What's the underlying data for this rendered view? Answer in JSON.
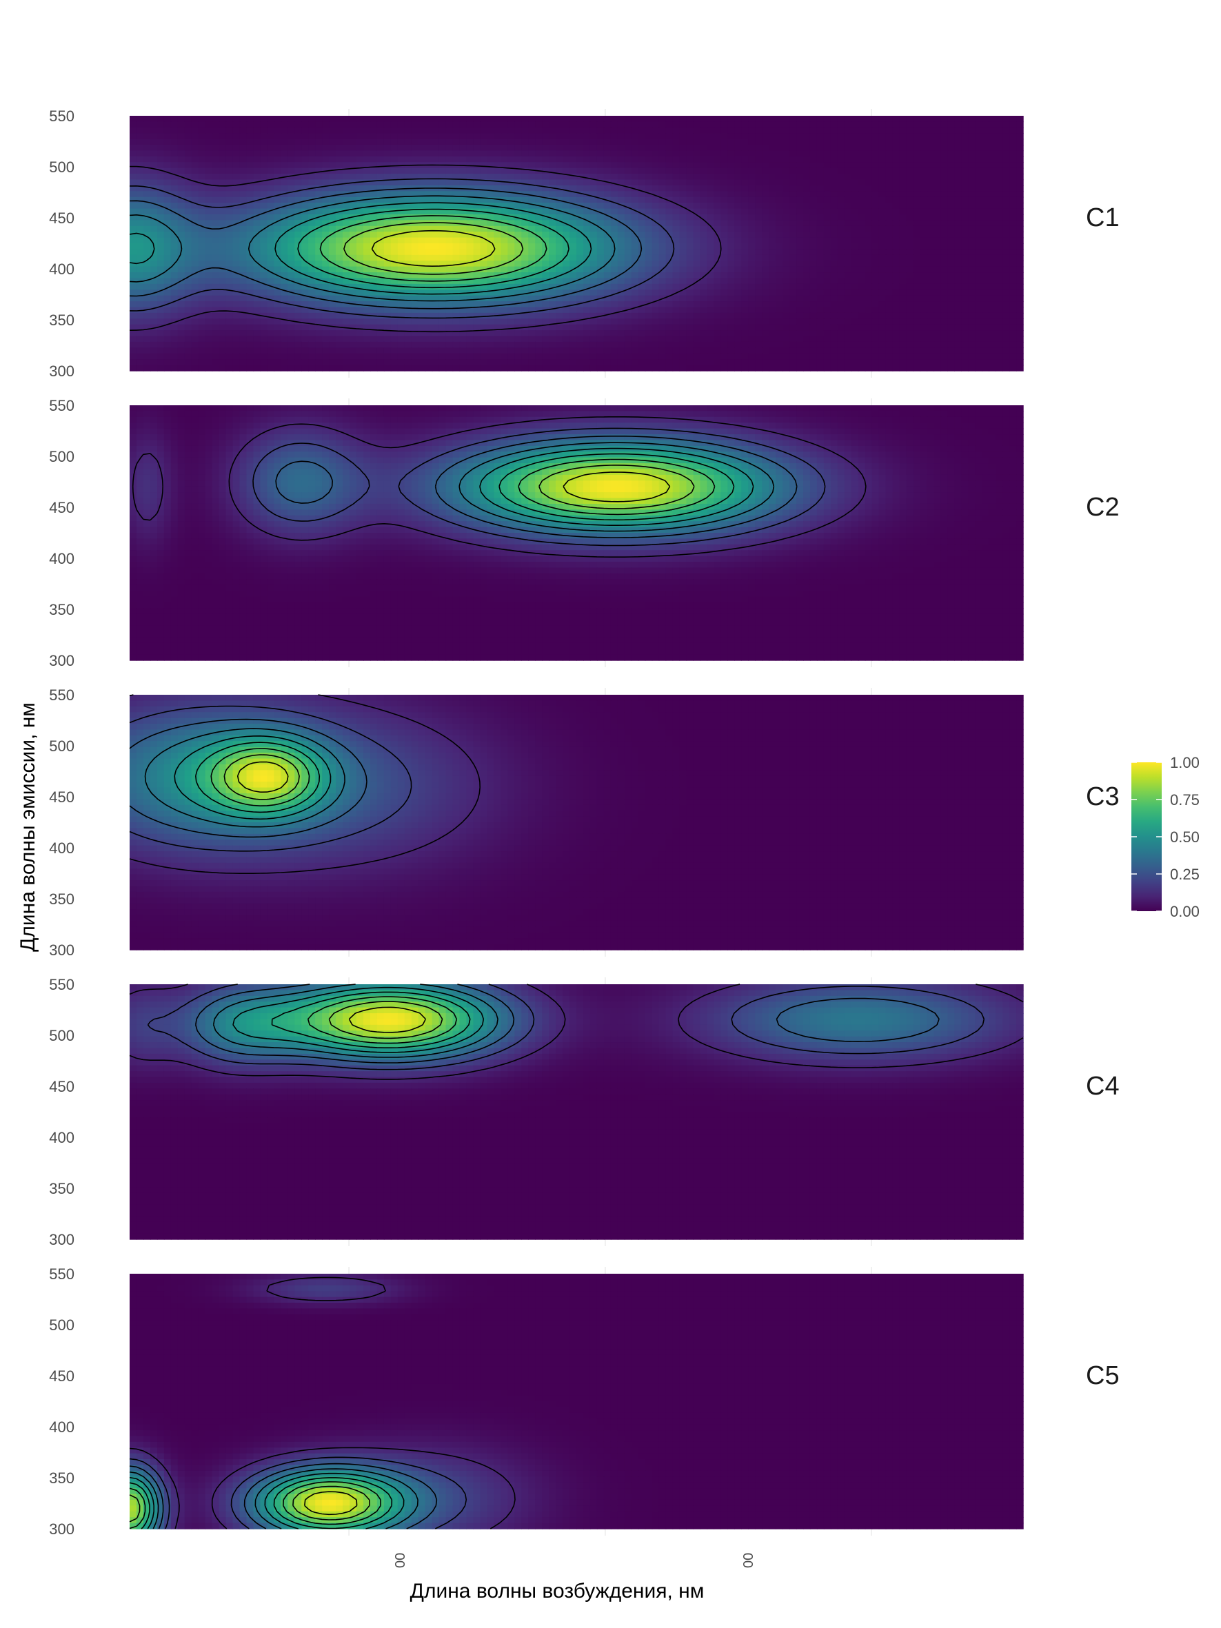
{
  "chart_data": {
    "type": "heatmap",
    "xlabel": "Длина волны возбуждения, нм",
    "ylabel": "Длина волны эмиссии, нм",
    "x_tick_labels": [
      "00",
      "00"
    ],
    "ylim": [
      300,
      550
    ],
    "y_ticks": [
      "300",
      "350",
      "400",
      "450",
      "500",
      "550"
    ],
    "colormap": "viridis",
    "colors": {
      "low": "#440154",
      "mid": "#21918c",
      "high": "#fde725"
    },
    "legend": {
      "placement": "right",
      "range": [
        0,
        1
      ],
      "ticks": [
        "0.00",
        "0.25",
        "0.50",
        "0.75",
        "1.00"
      ]
    },
    "grid": true,
    "panels": [
      {
        "name": "C1",
        "peaks": [
          {
            "x": 0.34,
            "y": 420,
            "intensity": 1.0,
            "sx": 0.15,
            "sy": 38
          },
          {
            "x": 0.0,
            "y": 420,
            "intensity": 0.45,
            "sx": 0.05,
            "sy": 45
          }
        ]
      },
      {
        "name": "C2",
        "peaks": [
          {
            "x": 0.545,
            "y": 470,
            "intensity": 1.0,
            "sx": 0.13,
            "sy": 32
          },
          {
            "x": 0.19,
            "y": 475,
            "intensity": 0.33,
            "sx": 0.05,
            "sy": 36
          },
          {
            "x": 0.02,
            "y": 470,
            "intensity": 0.14,
            "sx": 0.02,
            "sy": 40
          }
        ]
      },
      {
        "name": "C3",
        "peaks": [
          {
            "x": 0.155,
            "y": 470,
            "intensity": 1.0,
            "sx": 0.045,
            "sy": 26
          },
          {
            "x": 0.07,
            "y": 470,
            "intensity": 0.75,
            "sx": 0.1,
            "sy": 50
          },
          {
            "x": 0.24,
            "y": 460,
            "intensity": 0.4,
            "sx": 0.12,
            "sy": 55
          }
        ]
      },
      {
        "name": "C4",
        "peaks": [
          {
            "x": 0.29,
            "y": 515,
            "intensity": 1.0,
            "sx": 0.09,
            "sy": 27
          },
          {
            "x": 0.815,
            "y": 515,
            "intensity": 0.4,
            "sx": 0.12,
            "sy": 28
          },
          {
            "x": 0.12,
            "y": 510,
            "intensity": 0.35,
            "sx": 0.05,
            "sy": 28
          },
          {
            "x": 0.01,
            "y": 510,
            "intensity": 0.15,
            "sx": 0.03,
            "sy": 30
          }
        ]
      },
      {
        "name": "C5",
        "peaks": [
          {
            "x": 0.22,
            "y": 325,
            "intensity": 1.0,
            "sx": 0.06,
            "sy": 24
          },
          {
            "x": 0.0,
            "y": 320,
            "intensity": 0.95,
            "sx": 0.025,
            "sy": 28
          },
          {
            "x": 0.22,
            "y": 535,
            "intensity": 0.2,
            "sx": 0.06,
            "sy": 10
          },
          {
            "x": 0.34,
            "y": 330,
            "intensity": 0.2,
            "sx": 0.08,
            "sy": 35
          }
        ]
      }
    ]
  }
}
